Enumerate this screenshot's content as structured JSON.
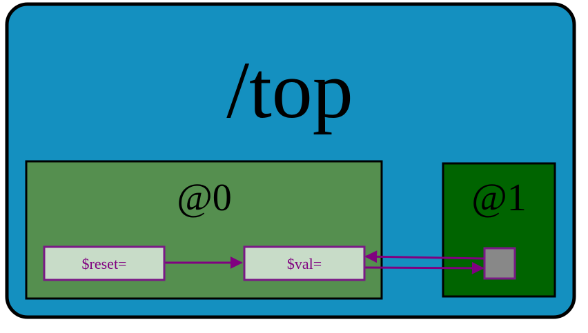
{
  "top": {
    "title": "/top",
    "fill": "#1490c0"
  },
  "group0": {
    "title": "@0",
    "fill": "#558f4f"
  },
  "group1": {
    "title": "@1",
    "fill": "#006400"
  },
  "nodes": {
    "reset": "$reset=",
    "val": "$val="
  },
  "colors": {
    "node_fill": "#c8dcc8",
    "node_stroke": "#7a1a86",
    "edge": "#800080",
    "port_fill": "#888888",
    "border": "#000000"
  }
}
